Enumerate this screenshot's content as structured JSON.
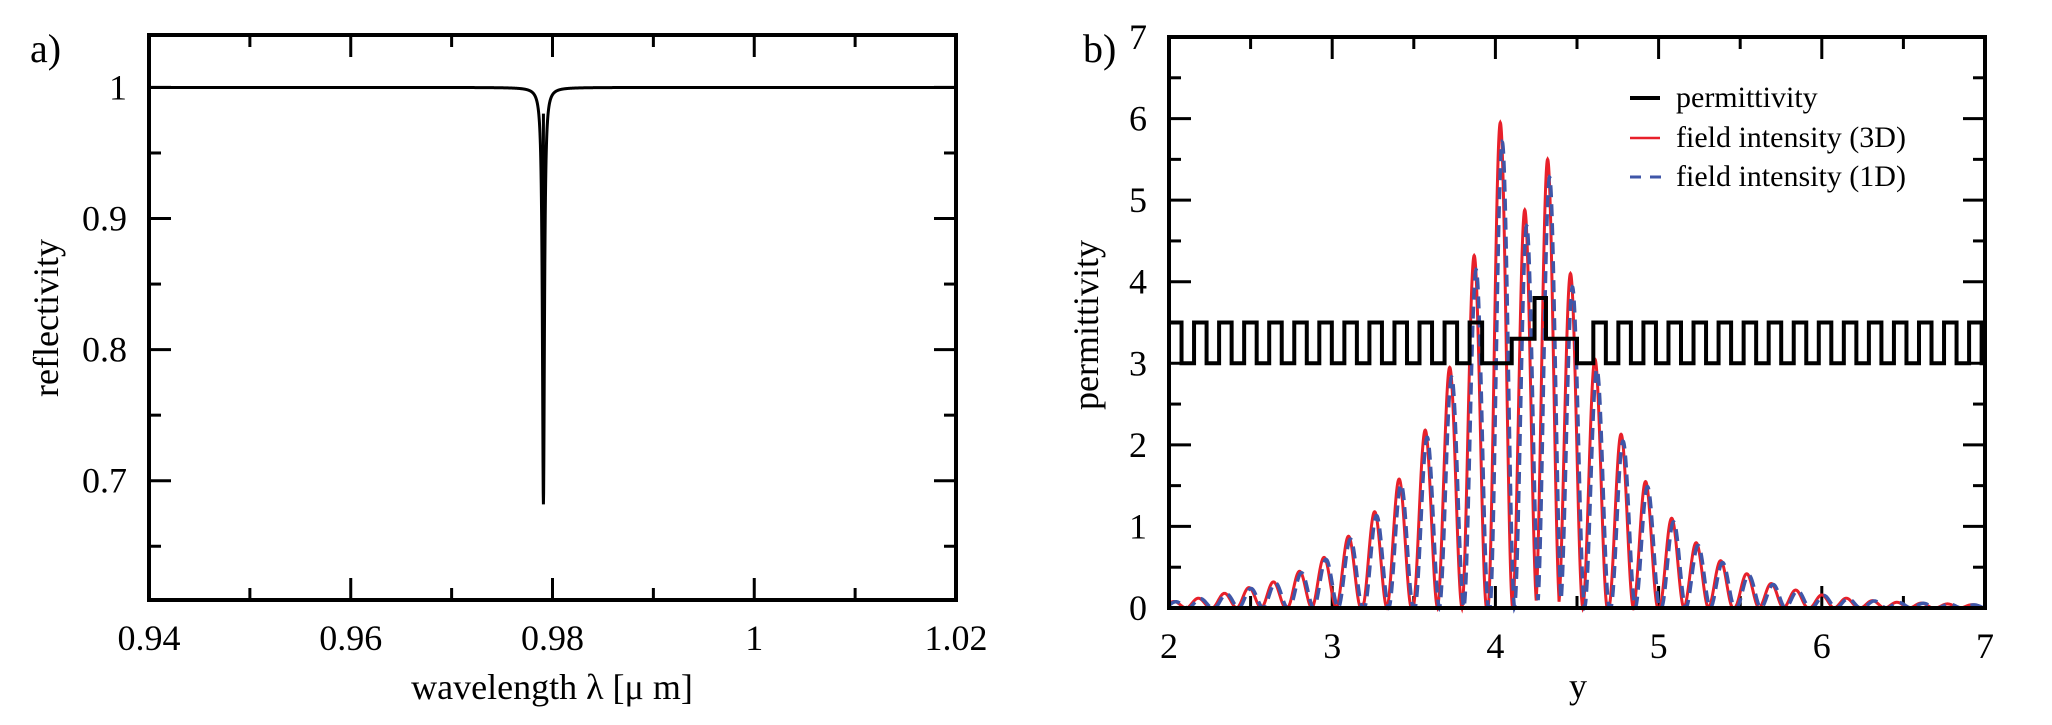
{
  "chart_data": [
    {
      "type": "line",
      "panel_label": "a)",
      "title": "",
      "xlabel": "wavelength λ [μ m]",
      "ylabel": "reflectivity",
      "xlim": [
        0.94,
        1.02
      ],
      "ylim": [
        0.609,
        1.04
      ],
      "xticks": [
        0.94,
        0.96,
        0.98,
        1.0,
        1.02
      ],
      "xtick_labels": [
        "0.94",
        "0.96",
        "0.98",
        "1",
        "1.02"
      ],
      "xminor": [
        0.95,
        0.97,
        0.99,
        1.01
      ],
      "yticks": [
        0.7,
        0.8,
        0.9,
        1.0
      ],
      "ytick_labels": [
        "0.7",
        "0.8",
        "0.9",
        "1"
      ],
      "yminor": [
        0.65,
        0.75,
        0.85,
        0.95
      ],
      "grid": false,
      "series": [
        {
          "name": "reflectivity",
          "color": "#000000",
          "baseline": 1.0,
          "dip_center": 0.9791,
          "dip_min": 0.682,
          "dip_halfwidth": 0.00012
        }
      ]
    },
    {
      "type": "line",
      "panel_label": "b)",
      "title": "",
      "xlabel": "y",
      "ylabel": "permittivity",
      "xlim": [
        2,
        7
      ],
      "ylim": [
        0,
        7
      ],
      "xticks": [
        2,
        3,
        4,
        5,
        6,
        7
      ],
      "xtick_labels": [
        "2",
        "3",
        "4",
        "5",
        "6",
        "7"
      ],
      "xminor": [
        2.5,
        3.5,
        4.5,
        5.5,
        6.5
      ],
      "yticks": [
        0,
        1,
        2,
        3,
        4,
        5,
        6,
        7
      ],
      "ytick_labels": [
        "0",
        "1",
        "2",
        "3",
        "4",
        "5",
        "6",
        "7"
      ],
      "yminor": [
        0.5,
        1.5,
        2.5,
        3.5,
        4.5,
        5.5,
        6.5
      ],
      "grid": false,
      "legend_position": "top-right",
      "legend": [
        "permittivity",
        "field intensity (3D)",
        "field intensity (1D)"
      ],
      "series": [
        {
          "name": "permittivity",
          "color": "#000000",
          "style": "solid",
          "low": 3.0,
          "high": 3.5,
          "period": 0.1535,
          "defect": [
            {
              "from": 3.93,
              "to": 4.1,
              "value": 3.0
            },
            {
              "from": 4.1,
              "to": 4.24,
              "value": 3.3
            },
            {
              "from": 4.24,
              "to": 4.31,
              "value": 3.8
            },
            {
              "from": 4.31,
              "to": 4.5,
              "value": 3.3
            },
            {
              "from": 4.5,
              "to": 4.6,
              "value": 3.0
            }
          ]
        },
        {
          "name": "field intensity (3D)",
          "color": "#e8202a",
          "style": "solid",
          "peaks_x": [
            2.03,
            2.18,
            2.34,
            2.49,
            2.64,
            2.8,
            2.95,
            3.1,
            3.26,
            3.41,
            3.57,
            3.72,
            3.87,
            4.03,
            4.18,
            4.32,
            4.46,
            4.61,
            4.77,
            4.92,
            5.08,
            5.23,
            5.38,
            5.54,
            5.69,
            5.84,
            6.0,
            6.15,
            6.31,
            6.46,
            6.61,
            6.77,
            6.92
          ],
          "peaks_y": [
            0.08,
            0.12,
            0.18,
            0.25,
            0.32,
            0.45,
            0.62,
            0.88,
            1.18,
            1.58,
            2.18,
            2.95,
            4.32,
            5.95,
            4.88,
            5.5,
            4.1,
            3.05,
            2.13,
            1.55,
            1.1,
            0.8,
            0.58,
            0.42,
            0.3,
            0.22,
            0.16,
            0.12,
            0.09,
            0.07,
            0.06,
            0.05,
            0.04
          ]
        },
        {
          "name": "field intensity (1D)",
          "color": "#3f56a8",
          "style": "dashed",
          "shift": 0.012,
          "scale": 0.96
        }
      ]
    }
  ]
}
